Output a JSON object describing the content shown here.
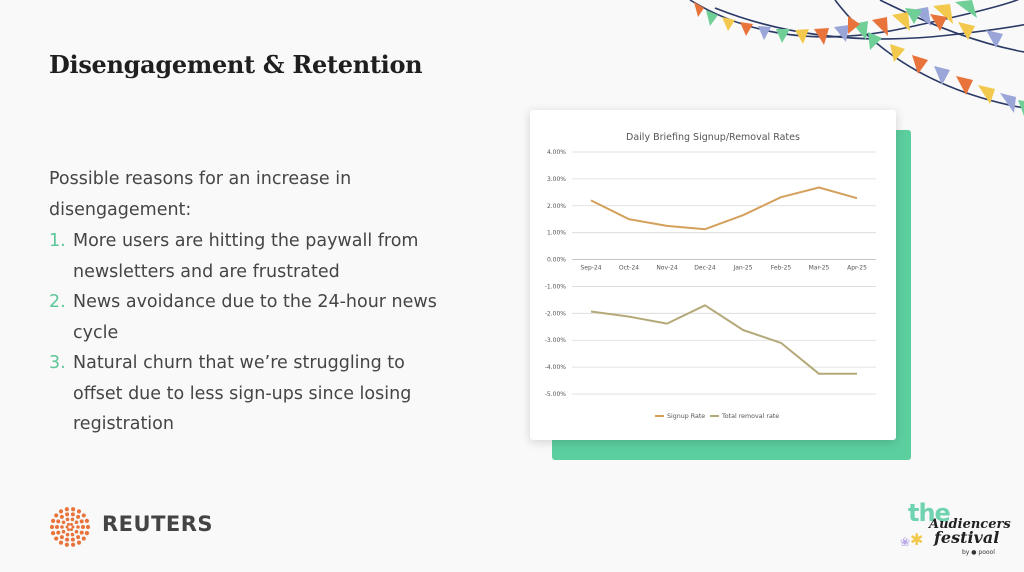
{
  "slide": {
    "title": "Disengagement & Retention",
    "intro": "Possible reasons for an increase in disengagement:",
    "reasons": [
      {
        "num": "1.",
        "text": "More users are hitting the paywall from newsletters and are frustrated"
      },
      {
        "num": "2.",
        "text": "News avoidance due to the 24-hour news cycle"
      },
      {
        "num": "3.",
        "text": "Natural churn that we’re struggling to offset due to less sign-ups since losing registration"
      }
    ]
  },
  "colors": {
    "accent_number": "#5ec79a",
    "chart_shadow": "#5ccf9f",
    "signup_line": "#d4a05c",
    "removal_line": "#b5a97a"
  },
  "branding": {
    "reuters": "REUTERS",
    "festival_the": "the",
    "festival_name_1": "Audiencers",
    "festival_name_2": "festival",
    "festival_by": "by ● poool"
  },
  "chart_data": {
    "type": "line",
    "title": "Daily Briefing Signup/Removal Rates",
    "categories": [
      "Sep-24",
      "Oct-24",
      "Nov-24",
      "Dec-24",
      "Jan-25",
      "Feb-25",
      "Mar-25",
      "Apr-25"
    ],
    "series": [
      {
        "name": "Signup Rate",
        "values": [
          0.022,
          0.015,
          0.0125,
          0.0113,
          0.0165,
          0.0232,
          0.0268,
          0.0228
        ]
      },
      {
        "name": "Total removal rate",
        "values": [
          -0.0193,
          -0.0212,
          -0.0238,
          -0.017,
          -0.0262,
          -0.031,
          -0.0425,
          -0.0425
        ]
      }
    ],
    "y_ticks": [
      "4.00%",
      "3.00%",
      "2.00%",
      "1.00%",
      "0.00%",
      "-1.00%",
      "-2.00%",
      "-3.00%",
      "-4.00%",
      "-5.00%"
    ],
    "ylim": [
      -0.05,
      0.04
    ],
    "xlabel": "",
    "ylabel": "",
    "grid": true,
    "legend_position": "bottom"
  }
}
